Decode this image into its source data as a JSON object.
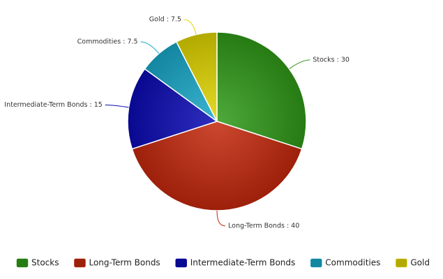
{
  "chart_data": {
    "type": "pie",
    "categories": [
      "Stocks",
      "Long-Term Bonds",
      "Intermediate-Term Bonds",
      "Commodities",
      "Gold"
    ],
    "values": [
      30,
      40,
      15,
      7.5,
      7.5
    ],
    "value_labels": [
      "Stocks : 30",
      "Long-Term Bonds : 40",
      "Intermediate-Term Bonds : 15",
      "Commodities : 7.5",
      "Gold : 7.5"
    ],
    "colors": [
      "#2f9a18",
      "#c4280c",
      "#0a0ab4",
      "#18a8c8",
      "#e0d400"
    ]
  }
}
